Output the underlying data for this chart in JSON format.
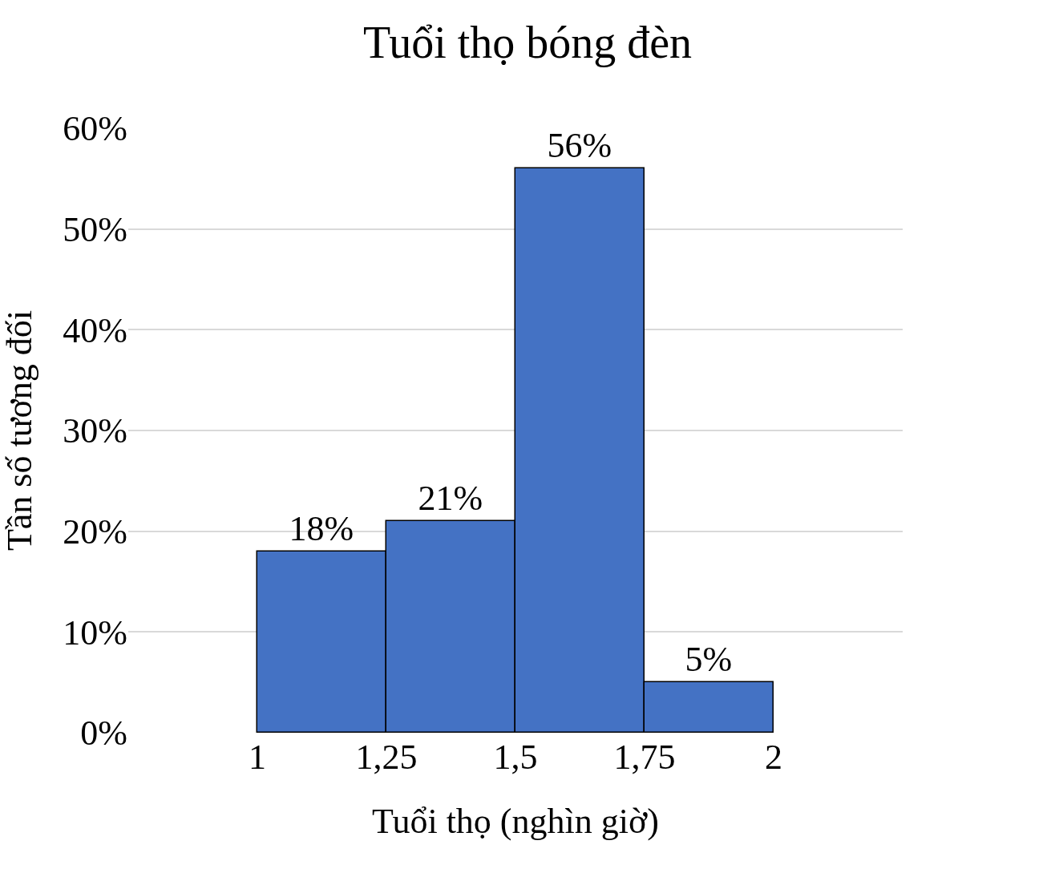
{
  "chart_data": {
    "type": "histogram",
    "title": "Tuổi thọ bóng đèn",
    "xlabel": "Tuổi thọ (nghìn giờ)",
    "ylabel": "Tần số tương đối",
    "bins": [
      1,
      1.25,
      1.5,
      1.75,
      2
    ],
    "values": [
      18,
      21,
      56,
      5
    ],
    "value_labels": [
      "18%",
      "21%",
      "56%",
      "5%"
    ],
    "color": "#4472c4",
    "xlim": [
      0.75,
      2.25
    ],
    "xticks": [
      {
        "value": 1,
        "label": "1"
      },
      {
        "value": 1.25,
        "label": "1,25"
      },
      {
        "value": 1.5,
        "label": "1,5"
      },
      {
        "value": 1.75,
        "label": "1,75"
      },
      {
        "value": 2,
        "label": "2"
      }
    ],
    "ylim": [
      0,
      60
    ],
    "yticks": [
      {
        "value": 0,
        "label": "0%"
      },
      {
        "value": 10,
        "label": "10%"
      },
      {
        "value": 20,
        "label": "20%"
      },
      {
        "value": 30,
        "label": "30%"
      },
      {
        "value": 40,
        "label": "40%"
      },
      {
        "value": 50,
        "label": "50%"
      },
      {
        "value": 60,
        "label": "60%"
      }
    ],
    "grid": "y",
    "legend": false
  }
}
